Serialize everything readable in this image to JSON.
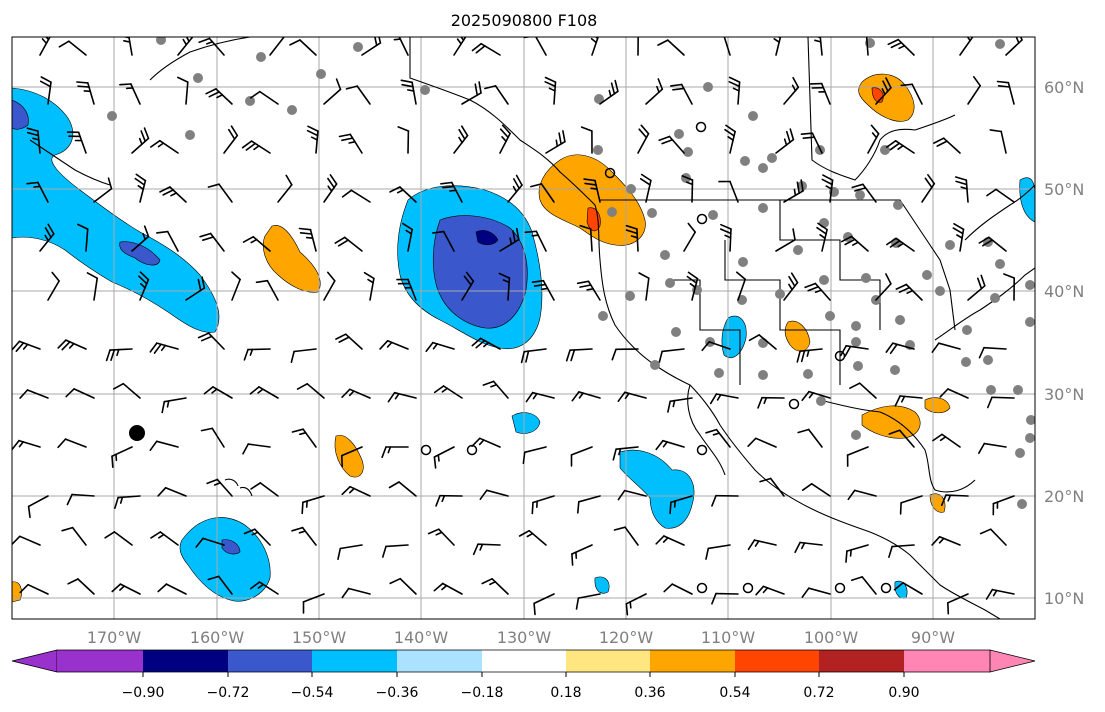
{
  "chart_data": {
    "type": "map",
    "title": "2025090800 F108",
    "lat_ticks": [
      "60°N",
      "50°N",
      "40°N",
      "30°N",
      "20°N",
      "10°N"
    ],
    "lon_ticks": [
      "170°W",
      "160°W",
      "150°W",
      "140°W",
      "130°W",
      "120°W",
      "110°W",
      "100°W",
      "90°W"
    ],
    "extent": {
      "lon": [
        -180,
        -80
      ],
      "lat": [
        8,
        65
      ]
    },
    "colorbar": {
      "ticks": [
        "−0.90",
        "−0.72",
        "−0.54",
        "−0.36",
        "−0.18",
        "0.18",
        "0.36",
        "0.54",
        "0.72",
        "0.90"
      ],
      "colors": [
        "#9932cc",
        "#000080",
        "#3a58cc",
        "#00bfff",
        "#aae2ff",
        "#ffffff",
        "#ffe680",
        "#ffa500",
        "#ff4500",
        "#b22222",
        "#ff85b4"
      ],
      "extend": "both"
    },
    "filled_regions": [
      {
        "name": "blue-patch-northwest-pacific",
        "color": "#00bfff"
      },
      {
        "name": "blue-patch-northeast-pacific",
        "color": "#00bfff"
      },
      {
        "name": "dark-blue-core-northeast-pacific",
        "color": "#3a58cc"
      },
      {
        "name": "orange-patch-pacific-northwest",
        "color": "#ffa500"
      },
      {
        "name": "orange-patch-hudson-bay",
        "color": "#ffa500"
      },
      {
        "name": "orange-patch-gulf-of-mexico",
        "color": "#ffa500"
      },
      {
        "name": "blue-patch-hawaii",
        "color": "#00bfff"
      },
      {
        "name": "blue-patch-baja",
        "color": "#00bfff"
      }
    ]
  }
}
